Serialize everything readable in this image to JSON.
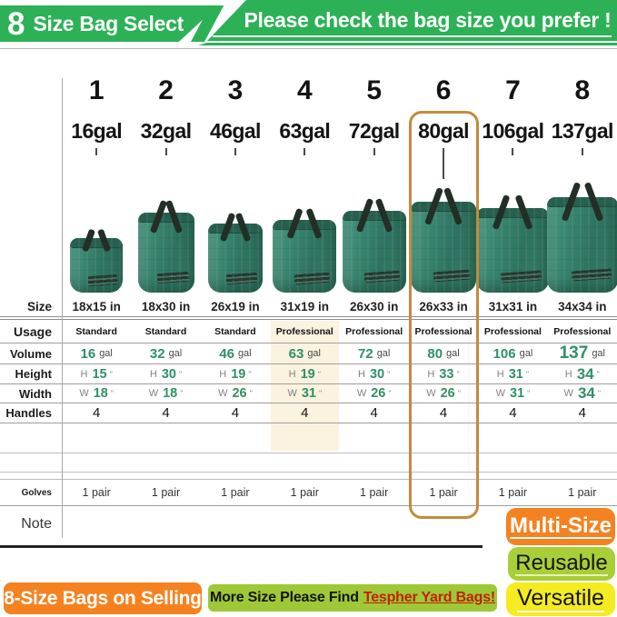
{
  "header": {
    "badge_number": "8",
    "badge_title": "Size Bag Select",
    "banner_title": "Please check the bag size you prefer !"
  },
  "row_labels": {
    "size": "Size",
    "usage": "Usage",
    "volume": "Volume",
    "height": "Height",
    "width": "Width",
    "handles": "Handles",
    "gloves": "Golves",
    "note": "Note"
  },
  "units": {
    "volume_unit": "gal",
    "height_prefix": "H",
    "width_prefix": "W",
    "inch_mark": "\""
  },
  "columns": [
    {
      "num": "1",
      "gal": "16gal",
      "size": "18x15 in",
      "usage": "Standard",
      "volume": "16",
      "height": "15",
      "width": "18",
      "handles": "4",
      "gloves": "1 pair"
    },
    {
      "num": "2",
      "gal": "32gal",
      "size": "18x30 in",
      "usage": "Standard",
      "volume": "32",
      "height": "30",
      "width": "18",
      "handles": "4",
      "gloves": "1 pair"
    },
    {
      "num": "3",
      "gal": "46gal",
      "size": "26x19 in",
      "usage": "Standard",
      "volume": "46",
      "height": "19",
      "width": "26",
      "handles": "4",
      "gloves": "1 pair"
    },
    {
      "num": "4",
      "gal": "63gal",
      "size": "31x19 in",
      "usage": "Professional",
      "volume": "63",
      "height": "19",
      "width": "31",
      "handles": "4",
      "gloves": "1 pair"
    },
    {
      "num": "5",
      "gal": "72gal",
      "size": "26x30 in",
      "usage": "Professional",
      "volume": "72",
      "height": "30",
      "width": "26",
      "handles": "4",
      "gloves": "1 pair"
    },
    {
      "num": "6",
      "gal": "80gal",
      "size": "26x33 in",
      "usage": "Professional",
      "volume": "80",
      "height": "33",
      "width": "26",
      "handles": "4",
      "gloves": "1 pair"
    },
    {
      "num": "7",
      "gal": "106gal",
      "size": "31x31 in",
      "usage": "Professional",
      "volume": "106",
      "height": "31",
      "width": "31",
      "handles": "4",
      "gloves": "1 pair"
    },
    {
      "num": "8",
      "gal": "137gal",
      "size": "34x34 in",
      "usage": "Professional",
      "volume": "137",
      "height": "34",
      "width": "34",
      "handles": "4",
      "gloves": "1 pair"
    }
  ],
  "highlight": {
    "selected_column": 6,
    "selected_box_color": "#c48a3e",
    "usage_highlight_column": 4,
    "usage_highlight_color": "#fcf2e0"
  },
  "badges": [
    {
      "label": "Multi-Size",
      "bg": "#f58220",
      "text_color": "#ffffff"
    },
    {
      "label": "Reusable",
      "bg": "#a8ce38",
      "text_color": "#151515"
    },
    {
      "label": "Versatile",
      "bg": "#f4eb21",
      "text_color": "#151515"
    }
  ],
  "footer": {
    "left_badge_label": "8-Size Bags on Selling",
    "left_badge_bg": "#f58220",
    "center_badge_bg": "#9fc837",
    "center_text": "More Size Please Find",
    "center_link": "Tespher Yard Bags!",
    "center_link_color": "#c32000"
  },
  "colors": {
    "header_green": "#2db157",
    "value_green": "#2f9166",
    "bag_green": "#35806c",
    "line_gray": "#9e9e9e"
  }
}
